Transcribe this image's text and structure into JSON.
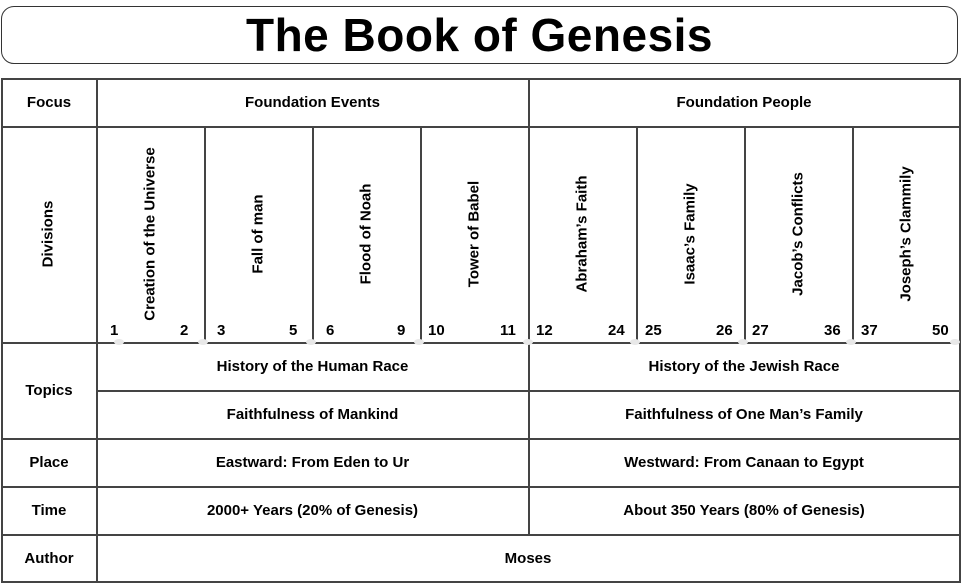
{
  "title": "The Book of Genesis",
  "rows": {
    "focus": {
      "label": "Focus",
      "left": "Foundation Events",
      "right": "Foundation People"
    },
    "divisions": {
      "label": "Divisions",
      "items": [
        {
          "name": "Creation of the Universe",
          "start": "1",
          "end": "2"
        },
        {
          "name": "Fall of man",
          "start": "3",
          "end": "5"
        },
        {
          "name": "Flood of Noah",
          "start": "6",
          "end": "9"
        },
        {
          "name": "Tower of Babel",
          "start": "10",
          "end": "11"
        },
        {
          "name": "Abraham’s Faith",
          "start": "12",
          "end": "24"
        },
        {
          "name": "Isaac’s Family",
          "start": "25",
          "end": "26"
        },
        {
          "name": "Jacob’s Conflicts",
          "start": "27",
          "end": "36"
        },
        {
          "name": "Joseph’s Clammily",
          "start": "37",
          "end": "50"
        }
      ]
    },
    "topics": {
      "label": "Topics",
      "left_1": "History of the Human Race",
      "right_1": "History of the Jewish Race",
      "left_2": "Faithfulness of Mankind",
      "right_2": "Faithfulness of One Man’s Family"
    },
    "place": {
      "label": "Place",
      "left": "Eastward: From Eden to Ur",
      "right": "Westward: From Canaan to Egypt"
    },
    "time": {
      "label": "Time",
      "left": "2000+ Years (20% of Genesis)",
      "right": "About 350 Years (80% of Genesis)"
    },
    "author": {
      "label": "Author",
      "value": "Moses"
    }
  }
}
